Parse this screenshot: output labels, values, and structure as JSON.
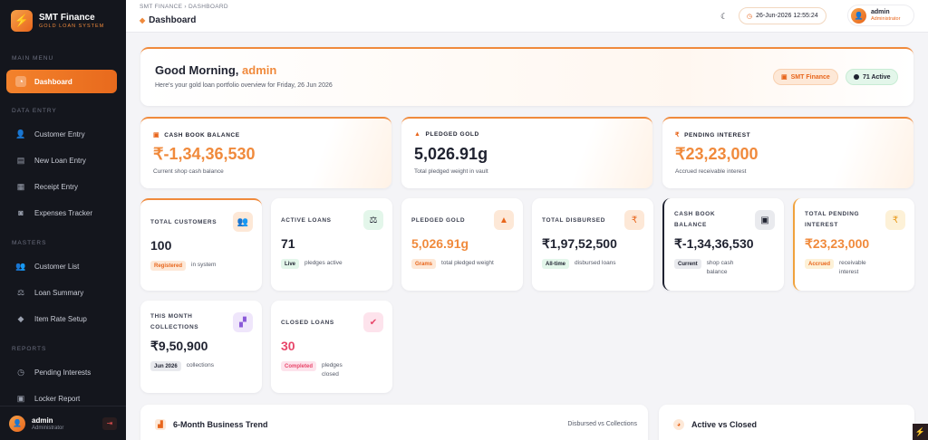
{
  "brand": {
    "title": "SMT Finance",
    "subtitle": "GOLD LOAN SYSTEM"
  },
  "sidebar": {
    "sections": [
      {
        "label": "MAIN MENU",
        "items": [
          {
            "label": "Dashboard",
            "icon": "dashboard-icon",
            "active": true
          }
        ]
      },
      {
        "label": "DATA ENTRY",
        "items": [
          {
            "label": "Customer Entry",
            "icon": "user-add-icon"
          },
          {
            "label": "New Loan Entry",
            "icon": "document-icon"
          },
          {
            "label": "Receipt Entry",
            "icon": "receipt-icon"
          },
          {
            "label": "Expenses Tracker",
            "icon": "wallet-icon"
          }
        ]
      },
      {
        "label": "MASTERS",
        "items": [
          {
            "label": "Customer List",
            "icon": "users-icon"
          },
          {
            "label": "Loan Summary",
            "icon": "scale-icon"
          },
          {
            "label": "Item Rate Setup",
            "icon": "diamond-icon"
          }
        ]
      },
      {
        "label": "REPORTS",
        "items": [
          {
            "label": "Pending Interests",
            "icon": "clock-icon"
          },
          {
            "label": "Locker Report",
            "icon": "locker-icon"
          }
        ]
      }
    ],
    "user": {
      "name": "admin",
      "role": "Administrator"
    }
  },
  "topbar": {
    "breadcrumb": [
      "SMT FINANCE",
      "DASHBOARD"
    ],
    "breadcrumb_sep": "›",
    "title": "Dashboard",
    "datetime": "26-Jun-2026 12:55:24",
    "user": {
      "name": "admin",
      "role": "Administrator"
    }
  },
  "greeting": {
    "prefix": "Good Morning,",
    "name": "admin",
    "subtitle": "Here's your gold loan portfolio overview for Friday, 26 Jun 2026",
    "pill_brand": "SMT Finance",
    "pill_active": "71 Active"
  },
  "big_cards": [
    {
      "label": "CASH BOOK BALANCE",
      "value": "₹-1,34,36,530",
      "caption": "Current shop cash balance",
      "value_color": "orange"
    },
    {
      "label": "PLEDGED GOLD",
      "value": "5,026.91g",
      "caption": "Total pledged weight in vault",
      "value_color": "dark"
    },
    {
      "label": "PENDING INTEREST",
      "value": "₹23,23,000",
      "caption": "Accrued receivable interest",
      "value_color": "orange"
    }
  ],
  "stat_cards": [
    {
      "label": "TOTAL CUSTOMERS",
      "value": "100",
      "badge": "Registered",
      "note": "in system"
    },
    {
      "label": "ACTIVE LOANS",
      "value": "71",
      "badge": "Live",
      "note": "pledges active"
    },
    {
      "label": "PLEDGED GOLD",
      "value": "5,026.91g",
      "badge": "Grams",
      "note": "total pledged weight"
    },
    {
      "label": "TOTAL DISBURSED",
      "value": "₹1,97,52,500",
      "badge": "All-time",
      "note": "disbursed loans"
    },
    {
      "label": "CASH BOOK BALANCE",
      "value": "₹-1,34,36,530",
      "badge": "Current",
      "note": "shop cash balance"
    },
    {
      "label": "TOTAL PENDING INTEREST",
      "value": "₹23,23,000",
      "badge": "Accrued",
      "note": "receivable interest"
    },
    {
      "label": "THIS MONTH COLLECTIONS",
      "value": "₹9,50,900",
      "badge": "Jun 2026",
      "note": "collections"
    },
    {
      "label": "CLOSED LOANS",
      "value": "30",
      "badge": "Completed",
      "note": "pledges closed"
    }
  ],
  "sections": {
    "trend_title": "6-Month Business Trend",
    "trend_sub": "Disbursed vs Collections",
    "closed_title": "Active vs Closed"
  },
  "colors": {
    "accent": "#f08a3c",
    "sidebar": "#14161d",
    "danger": "#e8466a"
  }
}
